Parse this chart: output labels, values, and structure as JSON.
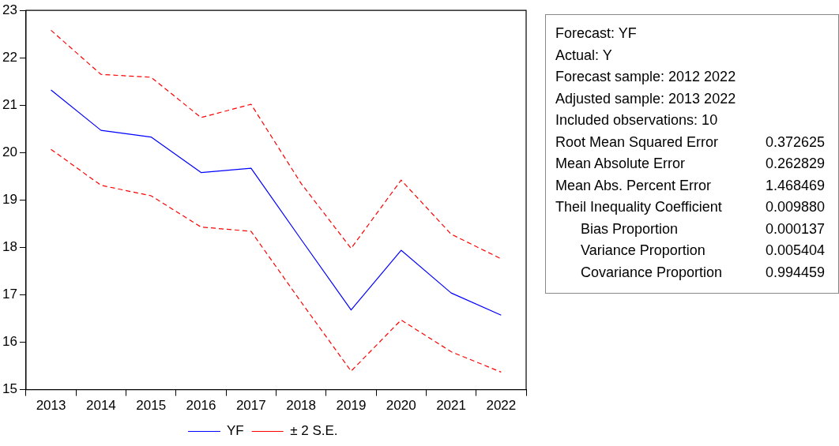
{
  "chart_data": [
    {
      "type": "line",
      "categories": [
        "2013",
        "2014",
        "2015",
        "2016",
        "2017",
        "2018",
        "2019",
        "2020",
        "2021",
        "2022"
      ],
      "series": [
        {
          "name": "YF",
          "color": "#0000ff",
          "line_style": "solid",
          "values": [
            21.32,
            20.47,
            20.33,
            19.58,
            19.67,
            18.17,
            16.68,
            17.94,
            17.04,
            16.57
          ]
        },
        {
          "name": "± 2 S.E.",
          "color": "#ff0000",
          "line_style": "dashed",
          "values": [
            22.58,
            21.65,
            21.59,
            20.74,
            21.02,
            19.35,
            17.98,
            19.42,
            18.28,
            17.76
          ]
        },
        {
          "color": "#ff0000",
          "line_style": "dashed",
          "values": [
            20.07,
            19.31,
            19.09,
            18.43,
            18.34,
            16.85,
            15.39,
            16.47,
            15.8,
            15.37
          ]
        }
      ],
      "ylim": [
        15,
        23
      ],
      "yticks": [
        15,
        16,
        17,
        18,
        19,
        20,
        21,
        22,
        23
      ],
      "grid": false,
      "legend": "bottom",
      "marker": "none"
    },
    {
      "type": "other",
      "annotations": [
        "Forecast: YF",
        "Actual: Y",
        "Forecast sample: 2012 2022",
        "Adjusted sample: 2013 2022",
        "Included observations: 10"
      ],
      "categories": [
        "Root Mean Squared Error",
        "Mean Absolute Error",
        "Mean Abs. Percent Error",
        "Theil Inequality Coefficient",
        "Bias Proportion",
        "Variance Proportion",
        "Covariance Proportion"
      ],
      "value_labels": [
        "0.372625",
        "0.262829",
        "1.468469",
        "0.009880",
        "0.000137",
        "0.005404",
        "0.994459"
      ]
    }
  ]
}
